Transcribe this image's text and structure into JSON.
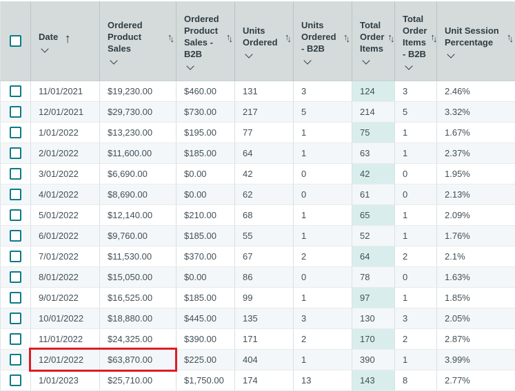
{
  "icons": {
    "arrow_up": "↑",
    "arrow_down": "↓",
    "sort_ascending_icon": "arrow-up",
    "sort_icon": "arrow-up-down",
    "column_menu_icon": "chevron-down"
  },
  "colors": {
    "header_bg": "#d5dbdb",
    "header_text": "#2e3c43",
    "body_text": "#414f58",
    "stripe_row_bg": "#f3f7f9",
    "highlight_column_bg": "#d9eeec",
    "checkbox_accent": "#0c7988",
    "annotation_red": "#df1c24"
  },
  "table": {
    "select_all_checked": false,
    "columns": [
      {
        "key": "date",
        "label": "Date",
        "sort": "asc"
      },
      {
        "key": "ordered_product_sales",
        "label": "Ordered Product Sales",
        "sort": "both"
      },
      {
        "key": "ordered_product_sales_b2b",
        "label": "Ordered Product Sales - B2B",
        "sort": "both"
      },
      {
        "key": "units_ordered",
        "label": "Units Ordered",
        "sort": "both"
      },
      {
        "key": "units_ordered_b2b",
        "label": "Units Ordered - B2B",
        "sort": "both"
      },
      {
        "key": "total_order_items",
        "label": "Total Order Items",
        "sort": "both",
        "highlight": true
      },
      {
        "key": "total_order_items_b2b",
        "label": "Total Order Items - B2B",
        "sort": "both"
      },
      {
        "key": "unit_session_percentage",
        "label": "Unit Session Percentage",
        "sort": "both"
      }
    ],
    "rows": [
      {
        "date": "11/01/2021",
        "ordered_product_sales": "$19,230.00",
        "ordered_product_sales_b2b": "$460.00",
        "units_ordered": "131",
        "units_ordered_b2b": "3",
        "total_order_items": "124",
        "total_order_items_b2b": "3",
        "unit_session_percentage": "2.46%"
      },
      {
        "date": "12/01/2021",
        "ordered_product_sales": "$29,730.00",
        "ordered_product_sales_b2b": "$730.00",
        "units_ordered": "217",
        "units_ordered_b2b": "5",
        "total_order_items": "214",
        "total_order_items_b2b": "5",
        "unit_session_percentage": "3.32%"
      },
      {
        "date": "1/01/2022",
        "ordered_product_sales": "$13,230.00",
        "ordered_product_sales_b2b": "$195.00",
        "units_ordered": "77",
        "units_ordered_b2b": "1",
        "total_order_items": "75",
        "total_order_items_b2b": "1",
        "unit_session_percentage": "1.67%"
      },
      {
        "date": "2/01/2022",
        "ordered_product_sales": "$11,600.00",
        "ordered_product_sales_b2b": "$185.00",
        "units_ordered": "64",
        "units_ordered_b2b": "1",
        "total_order_items": "63",
        "total_order_items_b2b": "1",
        "unit_session_percentage": "2.37%"
      },
      {
        "date": "3/01/2022",
        "ordered_product_sales": "$6,690.00",
        "ordered_product_sales_b2b": "$0.00",
        "units_ordered": "42",
        "units_ordered_b2b": "0",
        "total_order_items": "42",
        "total_order_items_b2b": "0",
        "unit_session_percentage": "1.95%"
      },
      {
        "date": "4/01/2022",
        "ordered_product_sales": "$8,690.00",
        "ordered_product_sales_b2b": "$0.00",
        "units_ordered": "62",
        "units_ordered_b2b": "0",
        "total_order_items": "61",
        "total_order_items_b2b": "0",
        "unit_session_percentage": "2.13%"
      },
      {
        "date": "5/01/2022",
        "ordered_product_sales": "$12,140.00",
        "ordered_product_sales_b2b": "$210.00",
        "units_ordered": "68",
        "units_ordered_b2b": "1",
        "total_order_items": "65",
        "total_order_items_b2b": "1",
        "unit_session_percentage": "2.09%"
      },
      {
        "date": "6/01/2022",
        "ordered_product_sales": "$9,760.00",
        "ordered_product_sales_b2b": "$185.00",
        "units_ordered": "55",
        "units_ordered_b2b": "1",
        "total_order_items": "52",
        "total_order_items_b2b": "1",
        "unit_session_percentage": "1.76%"
      },
      {
        "date": "7/01/2022",
        "ordered_product_sales": "$11,530.00",
        "ordered_product_sales_b2b": "$370.00",
        "units_ordered": "67",
        "units_ordered_b2b": "2",
        "total_order_items": "64",
        "total_order_items_b2b": "2",
        "unit_session_percentage": "2.1%"
      },
      {
        "date": "8/01/2022",
        "ordered_product_sales": "$15,050.00",
        "ordered_product_sales_b2b": "$0.00",
        "units_ordered": "86",
        "units_ordered_b2b": "0",
        "total_order_items": "78",
        "total_order_items_b2b": "0",
        "unit_session_percentage": "1.63%"
      },
      {
        "date": "9/01/2022",
        "ordered_product_sales": "$16,525.00",
        "ordered_product_sales_b2b": "$185.00",
        "units_ordered": "99",
        "units_ordered_b2b": "1",
        "total_order_items": "97",
        "total_order_items_b2b": "1",
        "unit_session_percentage": "1.85%"
      },
      {
        "date": "10/01/2022",
        "ordered_product_sales": "$18,880.00",
        "ordered_product_sales_b2b": "$445.00",
        "units_ordered": "135",
        "units_ordered_b2b": "3",
        "total_order_items": "130",
        "total_order_items_b2b": "3",
        "unit_session_percentage": "2.05%"
      },
      {
        "date": "11/01/2022",
        "ordered_product_sales": "$24,325.00",
        "ordered_product_sales_b2b": "$390.00",
        "units_ordered": "171",
        "units_ordered_b2b": "2",
        "total_order_items": "170",
        "total_order_items_b2b": "2",
        "unit_session_percentage": "2.87%"
      },
      {
        "date": "12/01/2022",
        "ordered_product_sales": "$63,870.00",
        "ordered_product_sales_b2b": "$225.00",
        "units_ordered": "404",
        "units_ordered_b2b": "1",
        "total_order_items": "390",
        "total_order_items_b2b": "1",
        "unit_session_percentage": "3.99%"
      },
      {
        "date": "1/01/2023",
        "ordered_product_sales": "$25,710.00",
        "ordered_product_sales_b2b": "$1,750.00",
        "units_ordered": "174",
        "units_ordered_b2b": "13",
        "total_order_items": "143",
        "total_order_items_b2b": "8",
        "unit_session_percentage": "2.77%"
      }
    ],
    "annotation": {
      "shape": "red-box",
      "row_date": "12/01/2022",
      "columns": [
        "date",
        "ordered_product_sales"
      ],
      "highlighted_values": [
        "12/01/2022",
        "$63,870.00"
      ]
    }
  }
}
